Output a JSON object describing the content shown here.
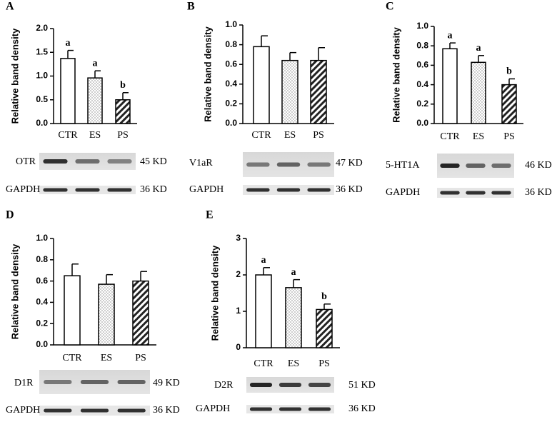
{
  "chart_data": [
    {
      "type": "bar",
      "panel": "A",
      "ylabel": "Relative band density",
      "categories": [
        "CTR",
        "ES",
        "PS"
      ],
      "values": [
        1.37,
        0.96,
        0.5
      ],
      "errors": [
        0.17,
        0.15,
        0.15
      ],
      "annotations": [
        "a",
        "a",
        "b"
      ],
      "ylim": [
        0,
        2.0
      ],
      "yticks": [
        {
          "value": 0,
          "label": "0.0"
        },
        0.5,
        {
          "value": 1.0,
          "label": "1.0"
        },
        1.5,
        {
          "value": 2.0,
          "label": "2.0"
        }
      ],
      "blot": {
        "target": "OTR",
        "target_size": "45 KD",
        "control": "GAPDH",
        "control_size": "36 KD"
      }
    },
    {
      "type": "bar",
      "panel": "B",
      "ylabel": "Relative band density",
      "categories": [
        "CTR",
        "ES",
        "PS"
      ],
      "values": [
        0.78,
        0.64,
        0.64
      ],
      "errors": [
        0.11,
        0.08,
        0.13
      ],
      "ylim": [
        0,
        1.0
      ],
      "yticks": [
        {
          "value": 0,
          "label": "0.0"
        },
        0.2,
        0.4,
        0.6,
        0.8,
        {
          "value": 1.0,
          "label": "1.0"
        }
      ],
      "blot": {
        "target": "V1aR",
        "target_size": "47 KD",
        "control": "GAPDH",
        "control_size": "36 KD"
      }
    },
    {
      "type": "bar",
      "panel": "C",
      "ylabel": "Relative band density",
      "categories": [
        "CTR",
        "ES",
        "PS"
      ],
      "values": [
        0.77,
        0.63,
        0.4
      ],
      "errors": [
        0.06,
        0.07,
        0.06
      ],
      "annotations": [
        "a",
        "a",
        "b"
      ],
      "ylim": [
        0,
        1.0
      ],
      "yticks": [
        {
          "value": 0,
          "label": "0.0"
        },
        0.2,
        0.4,
        0.6,
        0.8,
        {
          "value": 1.0,
          "label": "1.0"
        }
      ],
      "blot": {
        "target": "5-HT1A",
        "target_size": "46 KD",
        "control": "GAPDH",
        "control_size": "36 KD"
      }
    },
    {
      "type": "bar",
      "panel": "D",
      "ylabel": "Relative band density",
      "categories": [
        "CTR",
        "ES",
        "PS"
      ],
      "values": [
        0.65,
        0.57,
        0.6
      ],
      "errors": [
        0.11,
        0.09,
        0.09
      ],
      "ylim": [
        0,
        1.0
      ],
      "yticks": [
        {
          "value": 0,
          "label": "0.0"
        },
        0.2,
        0.4,
        0.6,
        0.8,
        {
          "value": 1.0,
          "label": "1.0"
        }
      ],
      "blot": {
        "target": "D1R",
        "target_size": "49 KD",
        "control": "GAPDH",
        "control_size": "36 KD"
      }
    },
    {
      "type": "bar",
      "panel": "E",
      "ylabel": "Relative band density",
      "categories": [
        "CTR",
        "ES",
        "PS"
      ],
      "values": [
        2.0,
        1.65,
        1.05
      ],
      "errors": [
        0.2,
        0.22,
        0.15
      ],
      "annotations": [
        "a",
        "a",
        "b"
      ],
      "ylim": [
        0,
        3
      ],
      "yticks": [
        0,
        1,
        2,
        3
      ],
      "blot": {
        "target": "D2R",
        "target_size": "51 KD",
        "control": "GAPDH",
        "control_size": "36 KD"
      }
    }
  ]
}
